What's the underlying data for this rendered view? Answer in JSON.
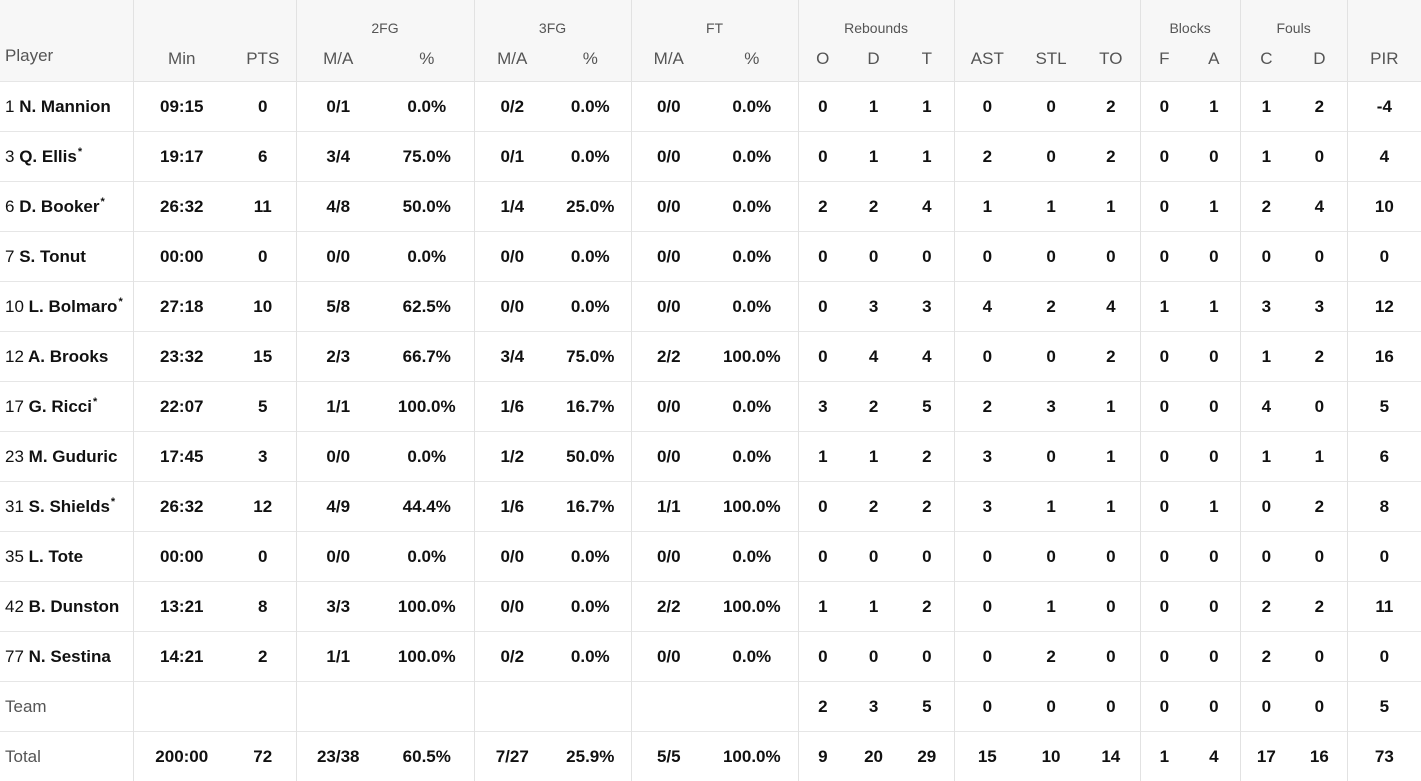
{
  "header": {
    "player_label": "Player",
    "groups": {
      "fg2": "2FG",
      "fg3": "3FG",
      "ft": "FT",
      "rebounds": "Rebounds",
      "blocks": "Blocks",
      "fouls": "Fouls"
    },
    "cols": {
      "min": "Min",
      "pts": "PTS",
      "fg2_ma": "M/A",
      "fg2_pct": "%",
      "fg3_ma": "M/A",
      "fg3_pct": "%",
      "ft_ma": "M/A",
      "ft_pct": "%",
      "reb_o": "O",
      "reb_d": "D",
      "reb_t": "T",
      "ast": "AST",
      "stl": "STL",
      "to": "TO",
      "blk_f": "F",
      "blk_a": "A",
      "foul_c": "C",
      "foul_d": "D",
      "pir": "PIR"
    }
  },
  "rows": [
    {
      "num": "1",
      "name": "N. Mannion",
      "starter": "",
      "min": "09:15",
      "pts": "0",
      "fg2_ma": "0/1",
      "fg2_pct": "0.0%",
      "fg3_ma": "0/2",
      "fg3_pct": "0.0%",
      "ft_ma": "0/0",
      "ft_pct": "0.0%",
      "reb_o": "0",
      "reb_d": "1",
      "reb_t": "1",
      "ast": "0",
      "stl": "0",
      "to": "2",
      "blk_f": "0",
      "blk_a": "1",
      "foul_c": "1",
      "foul_d": "2",
      "pir": "-4"
    },
    {
      "num": "3",
      "name": "Q. Ellis",
      "starter": "*",
      "min": "19:17",
      "pts": "6",
      "fg2_ma": "3/4",
      "fg2_pct": "75.0%",
      "fg3_ma": "0/1",
      "fg3_pct": "0.0%",
      "ft_ma": "0/0",
      "ft_pct": "0.0%",
      "reb_o": "0",
      "reb_d": "1",
      "reb_t": "1",
      "ast": "2",
      "stl": "0",
      "to": "2",
      "blk_f": "0",
      "blk_a": "0",
      "foul_c": "1",
      "foul_d": "0",
      "pir": "4"
    },
    {
      "num": "6",
      "name": "D. Booker",
      "starter": "*",
      "min": "26:32",
      "pts": "11",
      "fg2_ma": "4/8",
      "fg2_pct": "50.0%",
      "fg3_ma": "1/4",
      "fg3_pct": "25.0%",
      "ft_ma": "0/0",
      "ft_pct": "0.0%",
      "reb_o": "2",
      "reb_d": "2",
      "reb_t": "4",
      "ast": "1",
      "stl": "1",
      "to": "1",
      "blk_f": "0",
      "blk_a": "1",
      "foul_c": "2",
      "foul_d": "4",
      "pir": "10"
    },
    {
      "num": "7",
      "name": "S. Tonut",
      "starter": "",
      "min": "00:00",
      "pts": "0",
      "fg2_ma": "0/0",
      "fg2_pct": "0.0%",
      "fg3_ma": "0/0",
      "fg3_pct": "0.0%",
      "ft_ma": "0/0",
      "ft_pct": "0.0%",
      "reb_o": "0",
      "reb_d": "0",
      "reb_t": "0",
      "ast": "0",
      "stl": "0",
      "to": "0",
      "blk_f": "0",
      "blk_a": "0",
      "foul_c": "0",
      "foul_d": "0",
      "pir": "0"
    },
    {
      "num": "10",
      "name": "L. Bolmaro",
      "starter": "*",
      "min": "27:18",
      "pts": "10",
      "fg2_ma": "5/8",
      "fg2_pct": "62.5%",
      "fg3_ma": "0/0",
      "fg3_pct": "0.0%",
      "ft_ma": "0/0",
      "ft_pct": "0.0%",
      "reb_o": "0",
      "reb_d": "3",
      "reb_t": "3",
      "ast": "4",
      "stl": "2",
      "to": "4",
      "blk_f": "1",
      "blk_a": "1",
      "foul_c": "3",
      "foul_d": "3",
      "pir": "12"
    },
    {
      "num": "12",
      "name": "A. Brooks",
      "starter": "",
      "min": "23:32",
      "pts": "15",
      "fg2_ma": "2/3",
      "fg2_pct": "66.7%",
      "fg3_ma": "3/4",
      "fg3_pct": "75.0%",
      "ft_ma": "2/2",
      "ft_pct": "100.0%",
      "reb_o": "0",
      "reb_d": "4",
      "reb_t": "4",
      "ast": "0",
      "stl": "0",
      "to": "2",
      "blk_f": "0",
      "blk_a": "0",
      "foul_c": "1",
      "foul_d": "2",
      "pir": "16"
    },
    {
      "num": "17",
      "name": "G. Ricci",
      "starter": "*",
      "min": "22:07",
      "pts": "5",
      "fg2_ma": "1/1",
      "fg2_pct": "100.0%",
      "fg3_ma": "1/6",
      "fg3_pct": "16.7%",
      "ft_ma": "0/0",
      "ft_pct": "0.0%",
      "reb_o": "3",
      "reb_d": "2",
      "reb_t": "5",
      "ast": "2",
      "stl": "3",
      "to": "1",
      "blk_f": "0",
      "blk_a": "0",
      "foul_c": "4",
      "foul_d": "0",
      "pir": "5"
    },
    {
      "num": "23",
      "name": "M. Guduric",
      "starter": "",
      "min": "17:45",
      "pts": "3",
      "fg2_ma": "0/0",
      "fg2_pct": "0.0%",
      "fg3_ma": "1/2",
      "fg3_pct": "50.0%",
      "ft_ma": "0/0",
      "ft_pct": "0.0%",
      "reb_o": "1",
      "reb_d": "1",
      "reb_t": "2",
      "ast": "3",
      "stl": "0",
      "to": "1",
      "blk_f": "0",
      "blk_a": "0",
      "foul_c": "1",
      "foul_d": "1",
      "pir": "6"
    },
    {
      "num": "31",
      "name": "S. Shields",
      "starter": "*",
      "min": "26:32",
      "pts": "12",
      "fg2_ma": "4/9",
      "fg2_pct": "44.4%",
      "fg3_ma": "1/6",
      "fg3_pct": "16.7%",
      "ft_ma": "1/1",
      "ft_pct": "100.0%",
      "reb_o": "0",
      "reb_d": "2",
      "reb_t": "2",
      "ast": "3",
      "stl": "1",
      "to": "1",
      "blk_f": "0",
      "blk_a": "1",
      "foul_c": "0",
      "foul_d": "2",
      "pir": "8"
    },
    {
      "num": "35",
      "name": "L. Tote",
      "starter": "",
      "min": "00:00",
      "pts": "0",
      "fg2_ma": "0/0",
      "fg2_pct": "0.0%",
      "fg3_ma": "0/0",
      "fg3_pct": "0.0%",
      "ft_ma": "0/0",
      "ft_pct": "0.0%",
      "reb_o": "0",
      "reb_d": "0",
      "reb_t": "0",
      "ast": "0",
      "stl": "0",
      "to": "0",
      "blk_f": "0",
      "blk_a": "0",
      "foul_c": "0",
      "foul_d": "0",
      "pir": "0"
    },
    {
      "num": "42",
      "name": "B. Dunston",
      "starter": "",
      "min": "13:21",
      "pts": "8",
      "fg2_ma": "3/3",
      "fg2_pct": "100.0%",
      "fg3_ma": "0/0",
      "fg3_pct": "0.0%",
      "ft_ma": "2/2",
      "ft_pct": "100.0%",
      "reb_o": "1",
      "reb_d": "1",
      "reb_t": "2",
      "ast": "0",
      "stl": "1",
      "to": "0",
      "blk_f": "0",
      "blk_a": "0",
      "foul_c": "2",
      "foul_d": "2",
      "pir": "11"
    },
    {
      "num": "77",
      "name": "N. Sestina",
      "starter": "",
      "min": "14:21",
      "pts": "2",
      "fg2_ma": "1/1",
      "fg2_pct": "100.0%",
      "fg3_ma": "0/2",
      "fg3_pct": "0.0%",
      "ft_ma": "0/0",
      "ft_pct": "0.0%",
      "reb_o": "0",
      "reb_d": "0",
      "reb_t": "0",
      "ast": "0",
      "stl": "2",
      "to": "0",
      "blk_f": "0",
      "blk_a": "0",
      "foul_c": "2",
      "foul_d": "0",
      "pir": "0"
    }
  ],
  "team_row": {
    "label": "Team",
    "min": "",
    "pts": "",
    "fg2_ma": "",
    "fg2_pct": "",
    "fg3_ma": "",
    "fg3_pct": "",
    "ft_ma": "",
    "ft_pct": "",
    "reb_o": "2",
    "reb_d": "3",
    "reb_t": "5",
    "ast": "0",
    "stl": "0",
    "to": "0",
    "blk_f": "0",
    "blk_a": "0",
    "foul_c": "0",
    "foul_d": "0",
    "pir": "5"
  },
  "total_row": {
    "label": "Total",
    "min": "200:00",
    "pts": "72",
    "fg2_ma": "23/38",
    "fg2_pct": "60.5%",
    "fg3_ma": "7/27",
    "fg3_pct": "25.9%",
    "ft_ma": "5/5",
    "ft_pct": "100.0%",
    "reb_o": "9",
    "reb_d": "20",
    "reb_t": "29",
    "ast": "15",
    "stl": "10",
    "to": "14",
    "blk_f": "1",
    "blk_a": "4",
    "foul_c": "17",
    "foul_d": "16",
    "pir": "73"
  }
}
